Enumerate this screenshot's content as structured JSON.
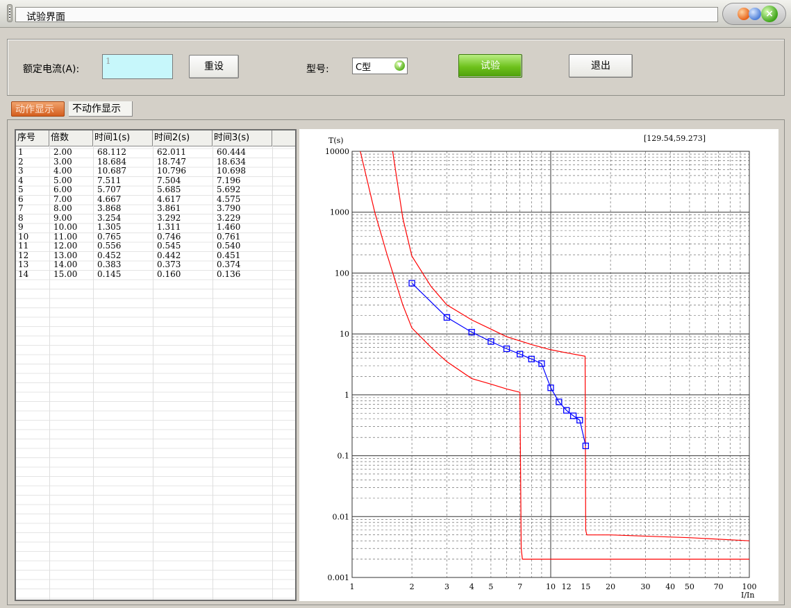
{
  "window": {
    "title": "试验界面"
  },
  "controls": {
    "rated_current_label": "额定电流(A):",
    "rated_current_value": "1",
    "reset_label": "重设",
    "model_label": "型号:",
    "model_value": "C型",
    "test_label": "试验",
    "exit_label": "退出"
  },
  "tabs": [
    {
      "label": "动作显示",
      "active": true
    },
    {
      "label": "不动作显示",
      "active": false
    }
  ],
  "table": {
    "columns": [
      "序号",
      "倍数",
      "时间1(s)",
      "时间2(s)",
      "时间3(s)"
    ],
    "rows": [
      [
        "1",
        "2.00",
        "68.112",
        "62.011",
        "60.444"
      ],
      [
        "2",
        "3.00",
        "18.684",
        "18.747",
        "18.634"
      ],
      [
        "3",
        "4.00",
        "10.687",
        "10.796",
        "10.698"
      ],
      [
        "4",
        "5.00",
        "7.511",
        "7.504",
        "7.196"
      ],
      [
        "5",
        "6.00",
        "5.707",
        "5.685",
        "5.692"
      ],
      [
        "6",
        "7.00",
        "4.667",
        "4.617",
        "4.575"
      ],
      [
        "7",
        "8.00",
        "3.868",
        "3.861",
        "3.790"
      ],
      [
        "8",
        "9.00",
        "3.254",
        "3.292",
        "3.229"
      ],
      [
        "9",
        "10.00",
        "1.305",
        "1.311",
        "1.460"
      ],
      [
        "10",
        "11.00",
        "0.765",
        "0.746",
        "0.761"
      ],
      [
        "11",
        "12.00",
        "0.556",
        "0.545",
        "0.540"
      ],
      [
        "12",
        "13.00",
        "0.452",
        "0.442",
        "0.451"
      ],
      [
        "13",
        "14.00",
        "0.383",
        "0.373",
        "0.374"
      ],
      [
        "14",
        "15.00",
        "0.145",
        "0.160",
        "0.136"
      ]
    ]
  },
  "chart_data": {
    "type": "scatter",
    "x_scale": "log",
    "y_scale": "log",
    "xlabel": "I/In",
    "ylabel": "T(s)",
    "xlim": [
      1,
      100
    ],
    "ylim": [
      0.001,
      10000
    ],
    "x_ticks": [
      "1",
      "2",
      "3",
      "4",
      "5",
      "7",
      "10",
      "12",
      "15",
      "20",
      "30",
      "40",
      "50",
      "70",
      "100"
    ],
    "y_ticks": [
      "0.001",
      "0.01",
      "0.1",
      "1",
      "10",
      "100",
      "1000",
      "10000"
    ],
    "cursor_readout": "[129.54,59.273]",
    "grid": true,
    "series": [
      {
        "x": [
          2,
          3,
          4,
          5,
          6,
          7,
          8,
          9,
          10,
          11,
          12,
          13,
          14,
          15
        ],
        "y": [
          68.112,
          18.684,
          10.687,
          7.511,
          5.707,
          4.667,
          3.868,
          3.254,
          1.305,
          0.765,
          0.556,
          0.452,
          0.383,
          0.145
        ],
        "color": "#0000ff",
        "marker": "square"
      }
    ],
    "curves": [
      {
        "color": "#ff0000",
        "x": [
          1.1,
          1.3,
          1.5,
          1.8,
          2,
          2.5,
          3,
          4,
          5,
          6,
          7,
          7.1,
          7.2,
          10,
          20,
          50,
          100
        ],
        "y": [
          10000,
          1000,
          200,
          30,
          12.5,
          6,
          3.5,
          1.85,
          1.5,
          1.25,
          1.1,
          0.003,
          0.002,
          0.002,
          0.002,
          0.002,
          0.002
        ]
      },
      {
        "color": "#ff0000",
        "x": [
          1.6,
          1.8,
          2,
          2.5,
          3,
          4,
          5,
          6,
          8,
          10,
          12,
          14.9,
          15,
          15.2,
          20,
          50,
          100
        ],
        "y": [
          10000,
          800,
          190,
          60,
          30,
          17,
          12,
          9,
          6.7,
          5.5,
          4.9,
          4.3,
          0.006,
          0.005,
          0.005,
          0.0045,
          0.004
        ]
      }
    ]
  }
}
